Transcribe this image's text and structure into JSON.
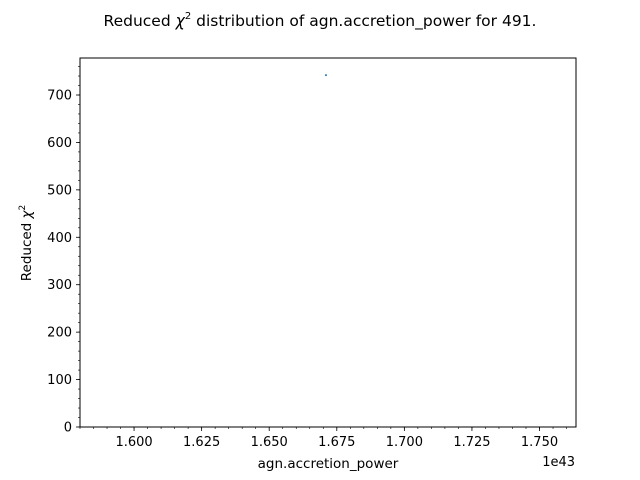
{
  "chart_data": {
    "type": "scatter",
    "title": "Reduced χ² distribution of agn.accretion_power for 491.",
    "title_main": "Reduced ",
    "title_sym": "χ",
    "title_sup": "2",
    "title_rest": " distribution of agn.accretion_power for 491.",
    "xlabel": "agn.accretion_power",
    "ylabel": "Reduced χ²",
    "ylabel_main": "Reduced ",
    "ylabel_sym": "χ",
    "ylabel_sup": "2",
    "x_offset_label": "1e43",
    "x_scale": 1e+43,
    "xlim": [
      1.58,
      1.7635
    ],
    "ylim": [
      0,
      778
    ],
    "x_ticks": [
      1.6,
      1.625,
      1.65,
      1.675,
      1.7,
      1.725,
      1.75
    ],
    "x_tick_labels": [
      "1.600",
      "1.625",
      "1.650",
      "1.675",
      "1.700",
      "1.725",
      "1.750"
    ],
    "x_minor_step": 0.005,
    "y_ticks": [
      0,
      100,
      200,
      300,
      400,
      500,
      600,
      700
    ],
    "y_tick_labels": [
      "0",
      "100",
      "200",
      "300",
      "400",
      "500",
      "600",
      "700"
    ],
    "y_minor_step": 20,
    "grid": false,
    "series": [
      {
        "x": [
          1.671
        ],
        "y": [
          742
        ],
        "color": "#1f77b4"
      }
    ],
    "colors": {
      "axes": "#000000",
      "point": "#1f77b4",
      "background": "#ffffff"
    }
  }
}
